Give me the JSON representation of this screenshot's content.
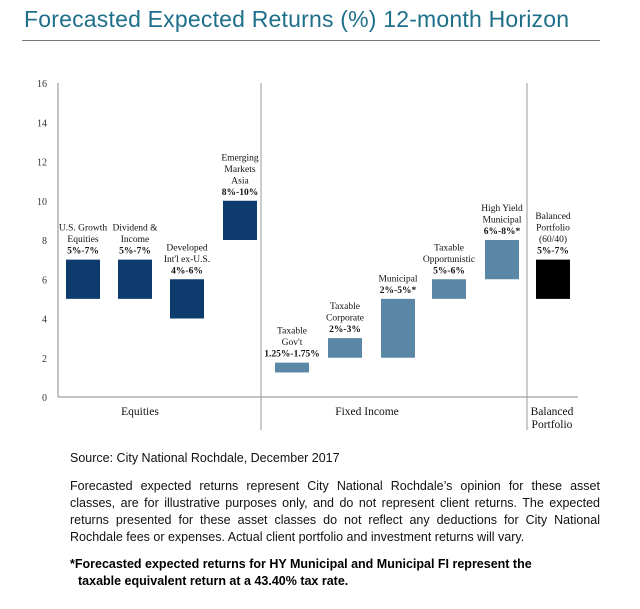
{
  "header": {
    "title": "Forecasted Expected Returns (%) 12-month Horizon"
  },
  "chart_data": {
    "type": "bar",
    "subtype": "floating-range",
    "ylim": [
      0,
      16
    ],
    "yticks": [
      0,
      2,
      4,
      6,
      8,
      10,
      12,
      14,
      16
    ],
    "grid": false,
    "bars": [
      {
        "label": [
          "U.S. Growth",
          "Equities",
          "5%-7%"
        ],
        "low": 5,
        "high": 7,
        "group": "equities",
        "color": "#0d3b6e"
      },
      {
        "label": [
          "Dividend &",
          "Income",
          "5%-7%"
        ],
        "low": 5,
        "high": 7,
        "group": "equities",
        "color": "#0d3b6e"
      },
      {
        "label": [
          "Developed",
          "Int'l ex-U.S.",
          "4%-6%"
        ],
        "low": 4,
        "high": 6,
        "group": "equities",
        "color": "#0d3b6e"
      },
      {
        "label": [
          "Emerging",
          "Markets",
          "Asia",
          "8%-10%"
        ],
        "low": 8,
        "high": 10,
        "group": "equities",
        "color": "#0d3b6e"
      },
      {
        "label": [
          "Taxable",
          "Gov't",
          "1.25%-1.75%"
        ],
        "low": 1.25,
        "high": 1.75,
        "group": "fixed_income",
        "color": "#5b87a6"
      },
      {
        "label": [
          "Taxable",
          "Corporate",
          "2%-3%"
        ],
        "low": 2,
        "high": 3,
        "group": "fixed_income",
        "color": "#5b87a6"
      },
      {
        "label": [
          "Municipal",
          "2%-5%*"
        ],
        "low": 2,
        "high": 5,
        "group": "fixed_income",
        "color": "#5b87a6"
      },
      {
        "label": [
          "Taxable",
          "Opportunistic",
          "5%-6%"
        ],
        "low": 5,
        "high": 6,
        "group": "fixed_income",
        "color": "#5b87a6"
      },
      {
        "label": [
          "High Yield",
          "Municipal",
          "6%-8%*"
        ],
        "low": 6,
        "high": 8,
        "group": "fixed_income",
        "color": "#5b87a6"
      },
      {
        "label": [
          "Balanced",
          "Portfolio",
          "(60/40)",
          "5%-7%"
        ],
        "low": 5,
        "high": 7,
        "group": "balanced",
        "color": "#000000"
      }
    ],
    "groups": [
      {
        "id": "equities",
        "label": [
          "Equities"
        ]
      },
      {
        "id": "fixed_income",
        "label": [
          "Fixed Income"
        ]
      },
      {
        "id": "balanced",
        "label": [
          "Balanced",
          "Portfolio"
        ]
      }
    ]
  },
  "source": "Source: City National Rochdale, December 2017",
  "disclaimer": "Forecasted expected returns represent City National Rochdale’s opinion for these asset classes, are for illustrative purposes only, and do not represent client returns. The expected returns presented for these asset classes do not reflect any deductions for City National Rochdale fees or expenses. Actual client portfolio and investment returns will vary.",
  "footnote": {
    "line1": "*Forecasted expected returns for HY Municipal and Municipal FI represent the",
    "line2": "taxable equivalent return at a 43.40% tax rate."
  }
}
